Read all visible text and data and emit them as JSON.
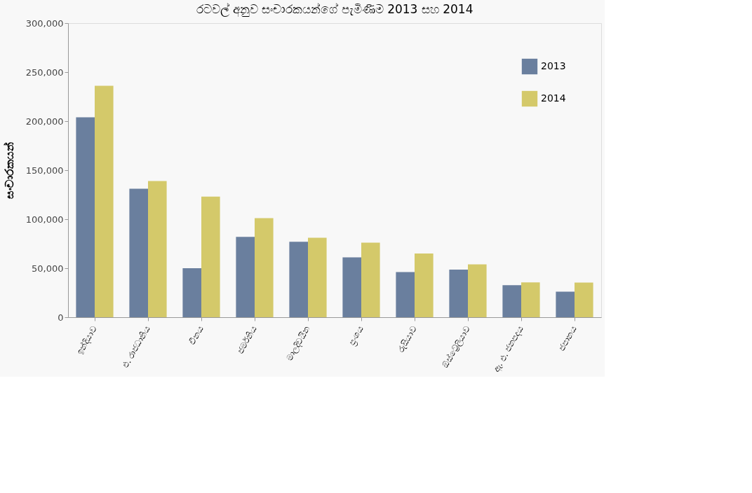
{
  "chart_data": {
    "type": "bar",
    "title": "රටවල් අනුව සංචාරකයන්ගේ පැමිණීම 2013 සහ 2014",
    "ylabel": "සංචාරකයන්",
    "categories": [
      "ඉන්දියාව",
      "එ. රාජධානිය",
      "චීනය",
      "ජර්මනිය",
      "මාලදිවයින",
      "ප්‍රංශය",
      "රුසියාව",
      "ඕස්ට්‍රේලියාව",
      "ඇ. එ. ජනපදය",
      "ජපානය"
    ],
    "series": [
      {
        "name": "2013",
        "color": "#6a7f9e",
        "values": [
          204000,
          131000,
          50000,
          82000,
          77000,
          61000,
          46000,
          48500,
          32600,
          26000
        ]
      },
      {
        "name": "2014",
        "color": "#d4c96a",
        "values": [
          236000,
          139000,
          123000,
          101000,
          81000,
          76000,
          65000,
          54000,
          35600,
          35300
        ]
      }
    ],
    "ylim": [
      0,
      300000
    ],
    "yticks": [
      0,
      {
        "value": 50000,
        "label": "50,000"
      },
      {
        "value": 100000,
        "label": "100,000"
      },
      {
        "value": 150000,
        "label": "150,000"
      },
      {
        "value": 200000,
        "label": "200,000"
      },
      {
        "value": 250000,
        "label": "250,000"
      },
      {
        "value": 300000,
        "label": "300,000"
      }
    ],
    "grid": false,
    "legend": "top right"
  }
}
